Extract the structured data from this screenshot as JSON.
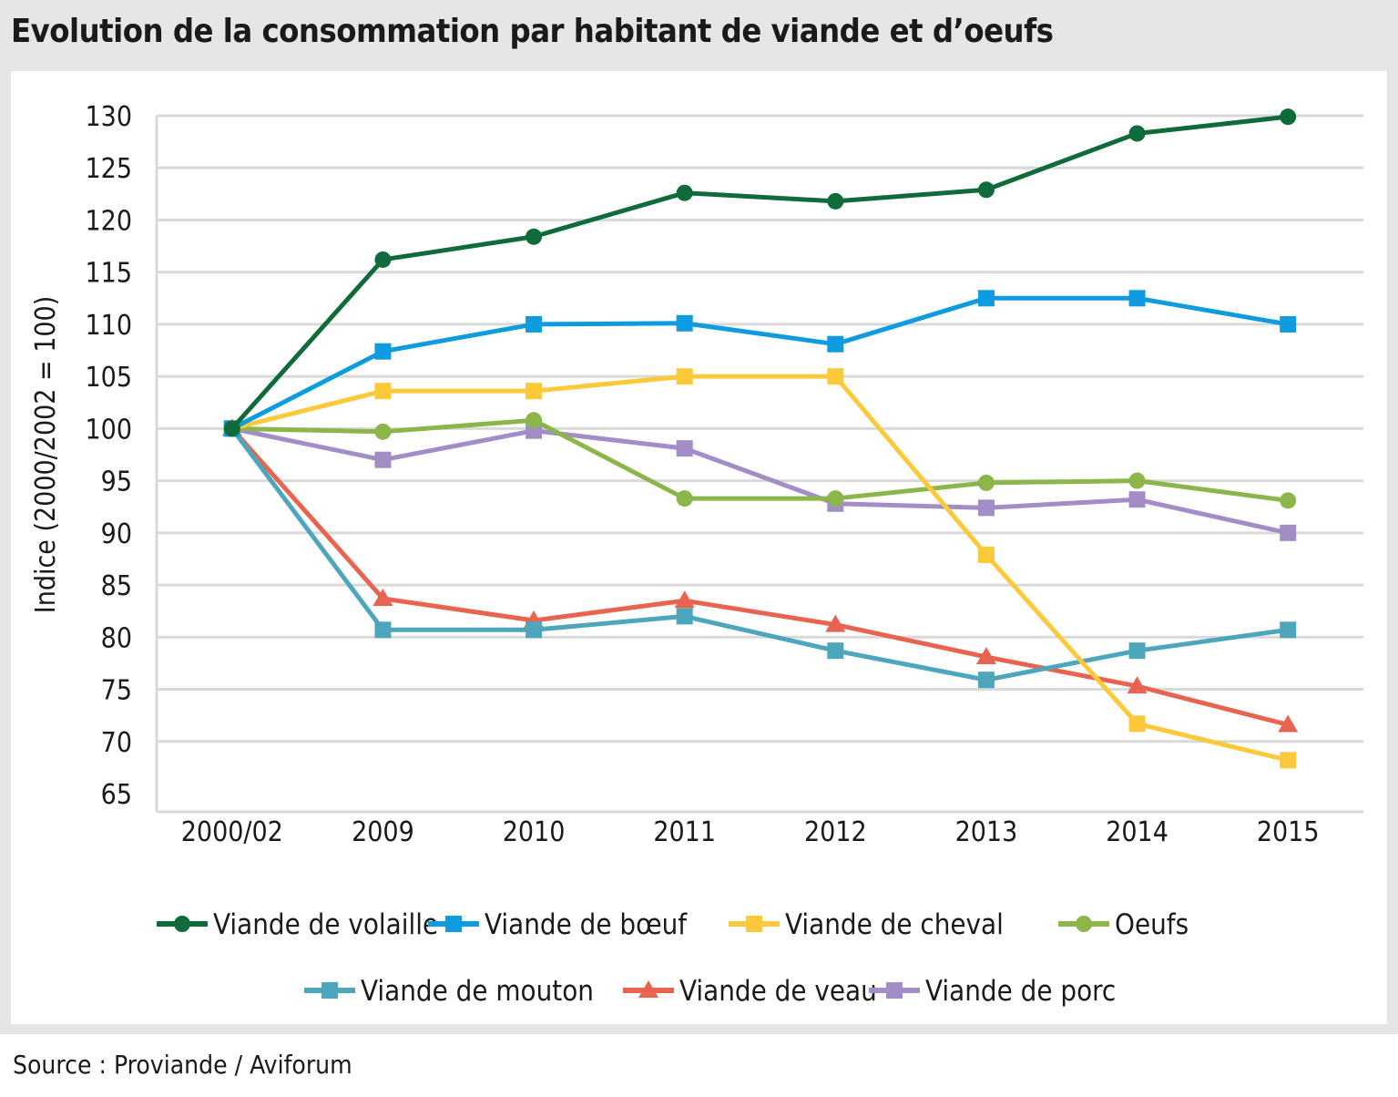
{
  "title": "Evolution de la consommation par habitant de viande et d’oeufs",
  "source": "Source : Proviande / Aviforum",
  "chart_data": {
    "type": "line",
    "title": "Evolution de la consommation par habitant de viande et d’oeufs",
    "xlabel": "",
    "ylabel": "Indice (2000/2002 = 100)",
    "ylim": [
      65,
      130
    ],
    "yticks": [
      65,
      70,
      75,
      80,
      85,
      90,
      95,
      100,
      105,
      110,
      115,
      120,
      125,
      130
    ],
    "grid": true,
    "legend_position": "bottom",
    "categories": [
      "2000/02",
      "2009",
      "2010",
      "2011",
      "2012",
      "2013",
      "2014",
      "2015"
    ],
    "series": [
      {
        "name": "Viande de volaille",
        "color": "#0f6b3a",
        "marker": "circle",
        "values": [
          100,
          116.2,
          118.4,
          122.6,
          121.8,
          122.9,
          128.3,
          129.9
        ]
      },
      {
        "name": "Viande de bœuf",
        "color": "#0f9be0",
        "marker": "square",
        "values": [
          100,
          107.4,
          110.0,
          110.1,
          108.1,
          112.5,
          112.5,
          110.0
        ]
      },
      {
        "name": "Viande de cheval",
        "color": "#fcc93a",
        "marker": "square",
        "values": [
          100,
          103.6,
          103.6,
          105.0,
          105.0,
          87.9,
          71.7,
          68.2
        ]
      },
      {
        "name": "Oeufs",
        "color": "#8cb54a",
        "marker": "circle",
        "values": [
          100,
          99.7,
          100.8,
          93.3,
          93.3,
          94.8,
          95.0,
          93.1
        ]
      },
      {
        "name": "Viande de mouton",
        "color": "#4ea6bd",
        "marker": "square",
        "values": [
          100,
          80.7,
          80.7,
          82.0,
          78.7,
          75.9,
          78.7,
          80.7
        ]
      },
      {
        "name": "Viande de veau",
        "color": "#e86450",
        "marker": "triangle",
        "values": [
          100,
          83.7,
          81.6,
          83.5,
          81.2,
          78.1,
          75.3,
          71.6
        ]
      },
      {
        "name": "Viande de porc",
        "color": "#a28dc6",
        "marker": "square",
        "values": [
          100,
          97.0,
          99.8,
          98.1,
          92.8,
          92.4,
          93.2,
          90.0
        ]
      }
    ]
  }
}
